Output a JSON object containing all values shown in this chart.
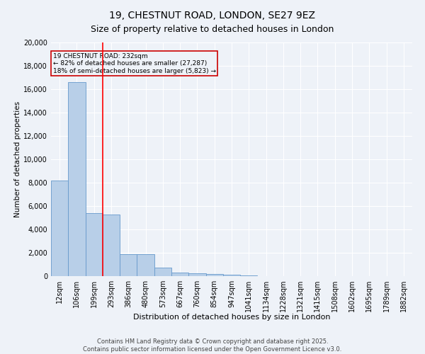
{
  "title1": "19, CHESTNUT ROAD, LONDON, SE27 9EZ",
  "title2": "Size of property relative to detached houses in London",
  "xlabel": "Distribution of detached houses by size in London",
  "ylabel": "Number of detached properties",
  "categories": [
    "12sqm",
    "106sqm",
    "199sqm",
    "293sqm",
    "386sqm",
    "480sqm",
    "573sqm",
    "667sqm",
    "760sqm",
    "854sqm",
    "947sqm",
    "1041sqm",
    "1134sqm",
    "1228sqm",
    "1321sqm",
    "1415sqm",
    "1508sqm",
    "1602sqm",
    "1695sqm",
    "1789sqm",
    "1882sqm"
  ],
  "values": [
    8200,
    16600,
    5400,
    5300,
    1850,
    1850,
    700,
    320,
    230,
    190,
    130,
    90,
    0,
    0,
    0,
    0,
    0,
    0,
    0,
    0,
    0
  ],
  "bar_color": "#b8cfe8",
  "bar_edge_color": "#6699cc",
  "red_line_index": 2,
  "annotation_title": "19 CHESTNUT ROAD: 232sqm",
  "annotation_line1": "← 82% of detached houses are smaller (27,287)",
  "annotation_line2": "18% of semi-detached houses are larger (5,823) →",
  "annotation_box_color": "#cc0000",
  "ylim": [
    0,
    20000
  ],
  "yticks": [
    0,
    2000,
    4000,
    6000,
    8000,
    10000,
    12000,
    14000,
    16000,
    18000,
    20000
  ],
  "footer": "Contains HM Land Registry data © Crown copyright and database right 2025.\nContains public sector information licensed under the Open Government Licence v3.0.",
  "bg_color": "#eef2f8",
  "grid_color": "#ffffff",
  "title_fontsize": 10,
  "subtitle_fontsize": 9
}
